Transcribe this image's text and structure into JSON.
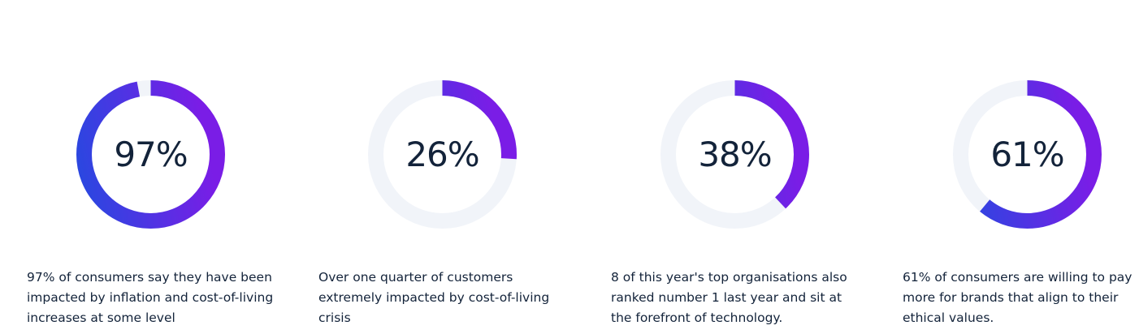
{
  "chart_data": [
    {
      "type": "pie",
      "variant": "donut",
      "values": [
        97
      ],
      "label": "97%",
      "caption": "97% of consumers say they have been impacted by inflation and cost-of-living increases at some level"
    },
    {
      "type": "pie",
      "variant": "donut",
      "values": [
        26
      ],
      "label": "26%",
      "caption": "Over one quarter of customers extremely impacted by cost-of-living crisis"
    },
    {
      "type": "pie",
      "variant": "donut",
      "values": [
        38
      ],
      "label": "38%",
      "caption": "8 of this year's top organisations also ranked number 1 last year and sit at the forefront of technology."
    },
    {
      "type": "pie",
      "variant": "donut",
      "values": [
        61
      ],
      "label": "61%",
      "caption": "61% of consumers are willing to pay more for brands that align to their ethical values."
    }
  ],
  "colors": {
    "track": "#f1f4f9",
    "gradient_start": "#2848e0",
    "gradient_end": "#7a1de6",
    "text": "#13233a"
  }
}
